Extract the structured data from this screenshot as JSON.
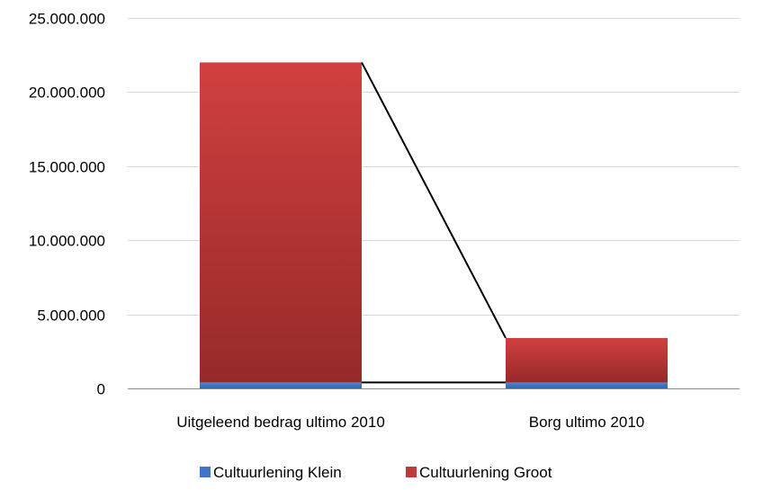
{
  "chart_data": {
    "type": "bar",
    "stacked": true,
    "categories": [
      "Uitgeleend bedrag ultimo 2010",
      "Borg ultimo 2010"
    ],
    "series": [
      {
        "name": "Cultuurlening Klein",
        "values": [
          400000,
          400000
        ],
        "color": "#3d76c8"
      },
      {
        "name": "Cultuurlening Groot",
        "values": [
          21600000,
          3000000
        ],
        "color": "#c0393a"
      }
    ],
    "ylim": [
      0,
      25000000
    ],
    "yticks": [
      0,
      5000000,
      10000000,
      15000000,
      20000000,
      25000000
    ],
    "ytick_labels": [
      "0",
      "5.000.000",
      "10.000.000",
      "15.000.000",
      "20.000.000",
      "25.000.000"
    ],
    "series_lines": true,
    "grid": true,
    "legend_position": "bottom"
  }
}
